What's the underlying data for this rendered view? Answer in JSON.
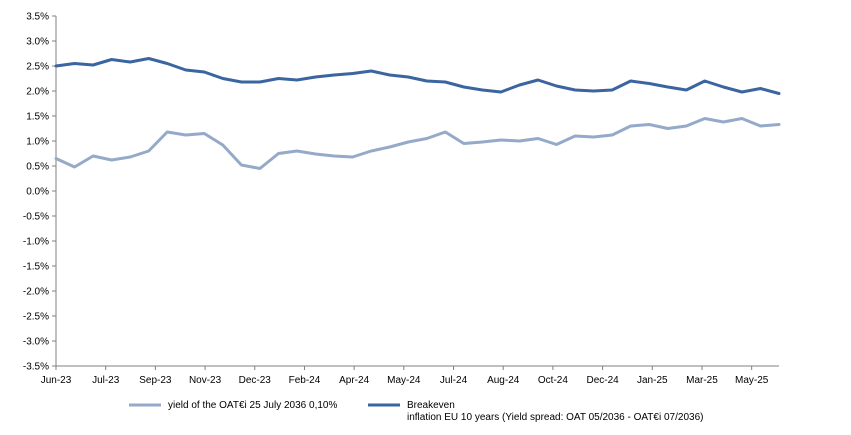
{
  "chart_data": {
    "type": "line",
    "title": "",
    "xlabel": "",
    "ylabel": "",
    "ylim": [
      -3.5,
      3.5
    ],
    "y_ticks": [
      3.5,
      3.0,
      2.5,
      2.0,
      1.5,
      1.0,
      0.5,
      0.0,
      -0.5,
      -1.0,
      -1.5,
      -2.0,
      -2.5,
      -3.0,
      -3.5
    ],
    "y_tick_labels": [
      "3.5%",
      "3.0%",
      "2.5%",
      "2.0%",
      "1.5%",
      "1.0%",
      "0.5%",
      "0.0%",
      "-0.5%",
      "-1.0%",
      "-1.5%",
      "-2.0%",
      "-2.5%",
      "-3.0%",
      "-3.5%"
    ],
    "x_tick_labels": [
      "Jun-23",
      "Jul-23",
      "Sep-23",
      "Nov-23",
      "Dec-23",
      "Feb-24",
      "Apr-24",
      "May-24",
      "Jul-24",
      "Aug-24",
      "Oct-24",
      "Dec-24",
      "Jan-25",
      "Mar-25",
      "May-25"
    ],
    "grid": false,
    "legend_position": "bottom",
    "x": [
      "Jun-23",
      "Jun-23",
      "Jul-23",
      "Jul-23",
      "Aug-23",
      "Sep-23",
      "Sep-23",
      "Oct-23",
      "Nov-23",
      "Nov-23",
      "Dec-23",
      "Dec-23",
      "Jan-24",
      "Feb-24",
      "Feb-24",
      "Mar-24",
      "Apr-24",
      "Apr-24",
      "May-24",
      "May-24",
      "Jun-24",
      "Jul-24",
      "Jul-24",
      "Aug-24",
      "Aug-24",
      "Sep-24",
      "Oct-24",
      "Oct-24",
      "Nov-24",
      "Dec-24",
      "Dec-24",
      "Jan-25",
      "Jan-25",
      "Feb-25",
      "Mar-25",
      "Mar-25",
      "Apr-25",
      "May-25",
      "May-25",
      "Jun-25"
    ],
    "series": [
      {
        "name": "yield of the OAT€i 25 July 2036 0,10%",
        "color": "#95a9c9",
        "values": [
          0.65,
          0.48,
          0.7,
          0.62,
          0.68,
          0.8,
          1.18,
          1.12,
          1.15,
          0.92,
          0.52,
          0.45,
          0.75,
          0.8,
          0.74,
          0.7,
          0.68,
          0.8,
          0.88,
          0.98,
          1.05,
          1.18,
          0.95,
          0.98,
          1.02,
          1.0,
          1.05,
          0.93,
          1.1,
          1.08,
          1.12,
          1.3,
          1.33,
          1.25,
          1.3,
          1.45,
          1.38,
          1.45,
          1.3,
          1.33
        ]
      },
      {
        "name": "Breakeven inflation EU  10 years (Yield spread: OAT 05/2036 - OAT€i 07/2036)",
        "legend_lines": [
          "Breakeven",
          "inflation EU  10 years (Yield spread: OAT 05/2036 - OAT€i 07/2036)"
        ],
        "color": "#3a65a0",
        "values": [
          2.5,
          2.55,
          2.52,
          2.63,
          2.58,
          2.65,
          2.55,
          2.42,
          2.38,
          2.25,
          2.18,
          2.18,
          2.25,
          2.22,
          2.28,
          2.32,
          2.35,
          2.4,
          2.32,
          2.28,
          2.2,
          2.18,
          2.08,
          2.02,
          1.98,
          2.12,
          2.22,
          2.1,
          2.02,
          2.0,
          2.02,
          2.2,
          2.15,
          2.08,
          2.02,
          2.2,
          2.08,
          1.98,
          2.05,
          1.95
        ]
      }
    ]
  }
}
